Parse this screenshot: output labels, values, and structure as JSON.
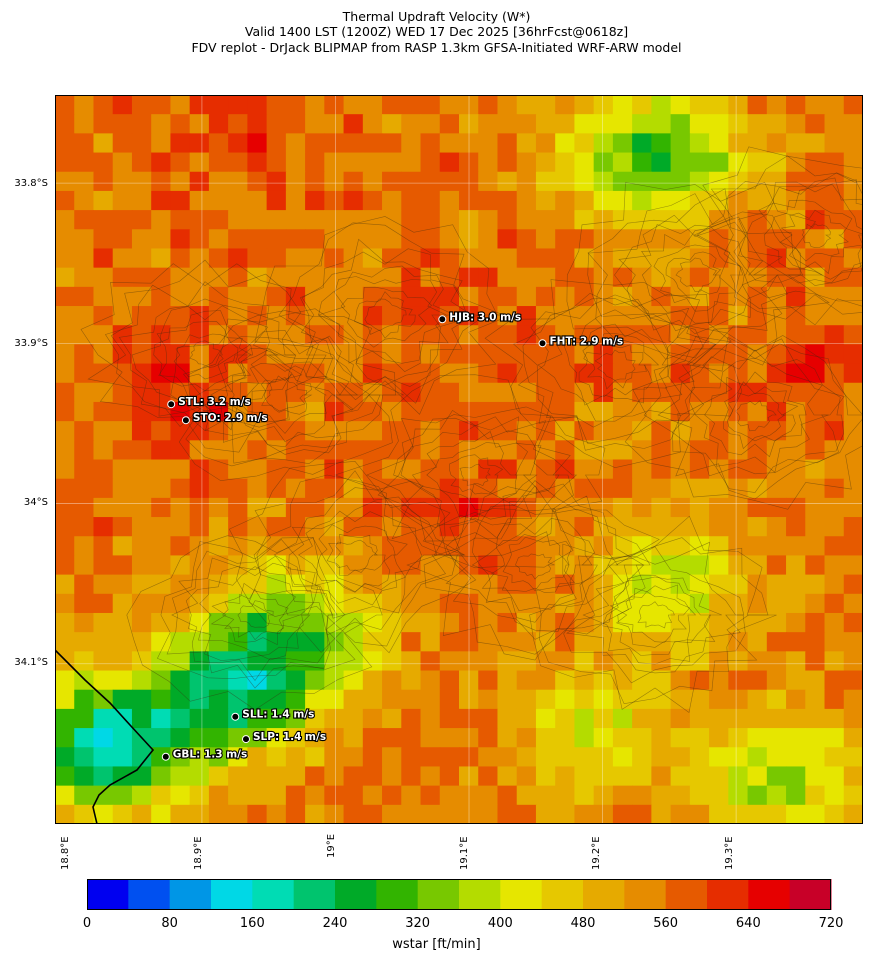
{
  "title": {
    "line1": "Thermal Updraft Velocity (W*)",
    "line2": "Valid 1400 LST (1200Z) WED 17 Dec 2025 [36hrFcst@0618z]",
    "line3": "FDV replot - DrJack BLIPMAP from RASP 1.3km GFSA-Initiated WRF-ARW model"
  },
  "axes": {
    "lat_labels": [
      "33.8°S",
      "33.9°S",
      "34°S",
      "34.1°S"
    ],
    "lon_labels": [
      "18.8°E",
      "18.9°E",
      "19°E",
      "19.1°E",
      "19.2°E",
      "19.3°E"
    ]
  },
  "stations": [
    {
      "code": "HJB",
      "label": "HJB: 3.0 m/s",
      "lon": 19.08,
      "lat": -33.885
    },
    {
      "code": "FHT",
      "label": "FHT: 2.9 m/s",
      "lon": 19.155,
      "lat": -33.9
    },
    {
      "code": "STL",
      "label": "STL: 3.2 m/s",
      "lon": 18.877,
      "lat": -33.938
    },
    {
      "code": "STO",
      "label": "STO: 2.9 m/s",
      "lon": 18.888,
      "lat": -33.948
    },
    {
      "code": "SLL",
      "label": "SLL: 1.4 m/s",
      "lon": 18.925,
      "lat": -34.133
    },
    {
      "code": "SLP",
      "label": "SLP: 1.4 m/s",
      "lon": 18.933,
      "lat": -34.147
    },
    {
      "code": "GBL",
      "label": "GBL: 1.3 m/s",
      "lon": 18.873,
      "lat": -34.158
    }
  ],
  "colorbar": {
    "label": "wstar [ft/min]",
    "ticks": [
      "0",
      "80",
      "160",
      "240",
      "320",
      "400",
      "480",
      "560",
      "640",
      "720"
    ],
    "colors": [
      "#0000f0",
      "#0050f0",
      "#0096e6",
      "#00d8e6",
      "#00dcb4",
      "#00c46e",
      "#00aa28",
      "#32b400",
      "#78c800",
      "#b4dc00",
      "#e6e600",
      "#e6c800",
      "#e6aa00",
      "#e68c00",
      "#e65a00",
      "#e62d00",
      "#e60000",
      "#c80028"
    ]
  },
  "map_data": {
    "domain": {
      "lon_min": 18.79,
      "lon_max": 19.395,
      "lat_min": -34.2,
      "lat_max": -33.745
    },
    "grid_cols": 42,
    "grid_rows": 38,
    "hotspots": [
      {
        "lon": 18.88,
        "lat": -33.94,
        "w": 640
      },
      {
        "lon": 19.08,
        "lat": -33.88,
        "w": 600
      },
      {
        "lon": 19.15,
        "lat": -33.9,
        "w": 590
      },
      {
        "lon": 18.93,
        "lat": -33.77,
        "w": 610
      },
      {
        "lon": 19.3,
        "lat": -33.82,
        "w": 600
      },
      {
        "lon": 19.36,
        "lat": -33.92,
        "w": 620
      },
      {
        "lon": 19.1,
        "lat": -34.0,
        "w": 610
      }
    ],
    "coolspots": [
      {
        "lon": 18.83,
        "lat": -34.15,
        "w": 180
      },
      {
        "lon": 18.92,
        "lat": -34.12,
        "w": 260
      },
      {
        "lon": 18.97,
        "lat": -34.08,
        "w": 320
      },
      {
        "lon": 19.25,
        "lat": -34.05,
        "w": 380
      },
      {
        "lon": 19.33,
        "lat": -34.17,
        "w": 350
      },
      {
        "lon": 19.22,
        "lat": -33.78,
        "w": 380
      },
      {
        "lon": 19.27,
        "lat": -33.79,
        "w": 420
      },
      {
        "lon": 19.19,
        "lat": -34.14,
        "w": 420
      }
    ]
  }
}
